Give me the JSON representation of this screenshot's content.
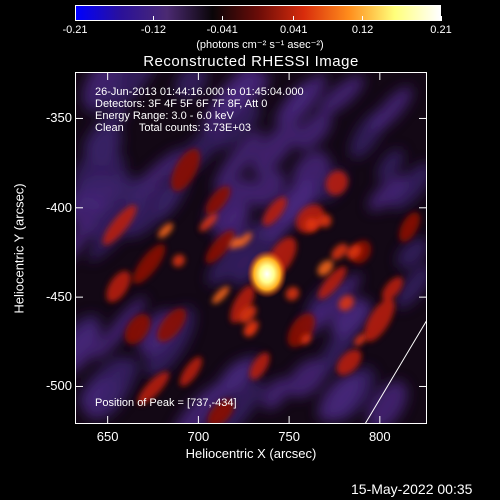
{
  "colorbar": {
    "tick_labels": [
      "-0.21",
      "-0.12",
      "-0.041",
      "0.041",
      "0.12",
      "0.21"
    ],
    "tick_values": [
      -0.21,
      -0.12,
      -0.041,
      0.041,
      0.12,
      0.21
    ],
    "units_label": "(photons cm⁻² s⁻¹ asec⁻²)",
    "range": [
      -0.21,
      0.21
    ]
  },
  "title": "Reconstructed RHESSI Image",
  "info": {
    "time_range": "26-Jun-2013 01:44:16.000 to 01:45:04.000",
    "detectors": "Detectors: 3F 4F 5F 6F 7F 8F, Att 0",
    "energy_range": "Energy Range: 3.0 - 6.0 keV",
    "method_counts": "Clean     Total counts: 3.73E+03",
    "peak_position": "Position of Peak = [737,-434]"
  },
  "axes": {
    "xlabel": "Heliocentric X (arcsec)",
    "ylabel": "Heliocentric Y (arcsec)",
    "x_ticks": [
      "650",
      "700",
      "750",
      "800"
    ],
    "x_tick_values": [
      650,
      700,
      750,
      800
    ],
    "y_ticks": [
      "-350",
      "-400",
      "-450",
      "-500"
    ],
    "y_tick_values": [
      -350,
      -400,
      -450,
      -500
    ],
    "xlim": [
      632,
      826
    ],
    "ylim": [
      -521,
      -324
    ]
  },
  "peak": {
    "x": 737,
    "y": -434
  },
  "timestamp": "15-May-2022 00:35",
  "colors": {
    "colorbar_stops": [
      "#0000ff",
      "#2b1199",
      "#4b2a72",
      "#0a0508",
      "#6a0c08",
      "#d82c0c",
      "#ff8d1c",
      "#ffff7a",
      "#ffffff"
    ]
  }
}
